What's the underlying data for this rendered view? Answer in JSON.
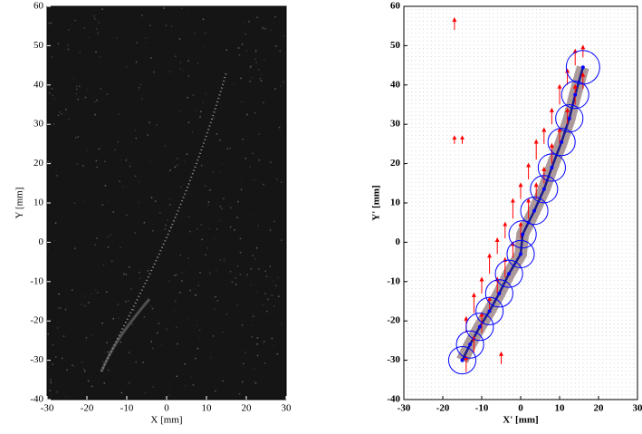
{
  "chart_data": [
    {
      "type": "image",
      "xlabel": "X [mm]",
      "ylabel": "Y [mm]",
      "xlim": [
        -30,
        30
      ],
      "ylim": [
        -40,
        60
      ],
      "xticks": [
        -30,
        -20,
        -10,
        0,
        10,
        20,
        30
      ],
      "yticks": [
        -40,
        -30,
        -20,
        -10,
        0,
        10,
        20,
        30,
        40,
        50,
        60
      ]
    },
    {
      "type": "vector",
      "xlabel": "X' [mm]",
      "ylabel": "Y' [mm]",
      "xlim": [
        -30,
        30
      ],
      "ylim": [
        -40,
        60
      ],
      "xticks": [
        -30,
        -20,
        -10,
        0,
        10,
        20,
        30
      ],
      "yticks": [
        -40,
        -30,
        -20,
        -10,
        0,
        10,
        20,
        30,
        40,
        50,
        60
      ],
      "circles": {
        "x": [
          -15,
          -13,
          -10.5,
          -8,
          -5.5,
          -3,
          0,
          0.5,
          3.5,
          6,
          8,
          10.5,
          12.5,
          14,
          16
        ],
        "y": [
          -30,
          -26,
          -21.5,
          -17.5,
          -13,
          -8,
          -3,
          2,
          8,
          13.5,
          19,
          25.5,
          31.5,
          37.5,
          44.5
        ],
        "r": [
          3.5,
          3.5,
          3.5,
          3.5,
          3.5,
          3.5,
          3.5,
          3.5,
          3.5,
          3.5,
          3.5,
          3.5,
          3.5,
          3.5,
          4.3
        ],
        "color": "#0000ff"
      },
      "line_color": "#1a1a8c",
      "arrows": {
        "x": [
          -14,
          -14,
          -12,
          -12,
          -10,
          -10,
          -8,
          -8,
          -6,
          -6,
          -4,
          -4,
          -2,
          -2,
          0,
          0,
          2,
          2,
          4,
          4,
          6,
          6,
          8,
          8,
          10,
          10,
          12,
          12,
          14,
          14,
          16,
          16,
          -17,
          -17,
          -15,
          -5
        ],
        "y": [
          -33,
          -23,
          -28,
          -18,
          -23,
          -13,
          -18,
          -8,
          -13,
          -3,
          -9,
          1,
          -4,
          6,
          1,
          11,
          6,
          16,
          11,
          21,
          15,
          25,
          20,
          30,
          25,
          35,
          30,
          40,
          35,
          45,
          39,
          47,
          54,
          25,
          25,
          -31
        ],
        "v": [
          4,
          4,
          4,
          5,
          5,
          4,
          4,
          5,
          4,
          4,
          5,
          4,
          4,
          5,
          4,
          4,
          5,
          4,
          4,
          5,
          4,
          4,
          5,
          4,
          4,
          5,
          4,
          4,
          5,
          4,
          4,
          3,
          3,
          2,
          2,
          3
        ],
        "color": "#ff0000"
      }
    }
  ]
}
